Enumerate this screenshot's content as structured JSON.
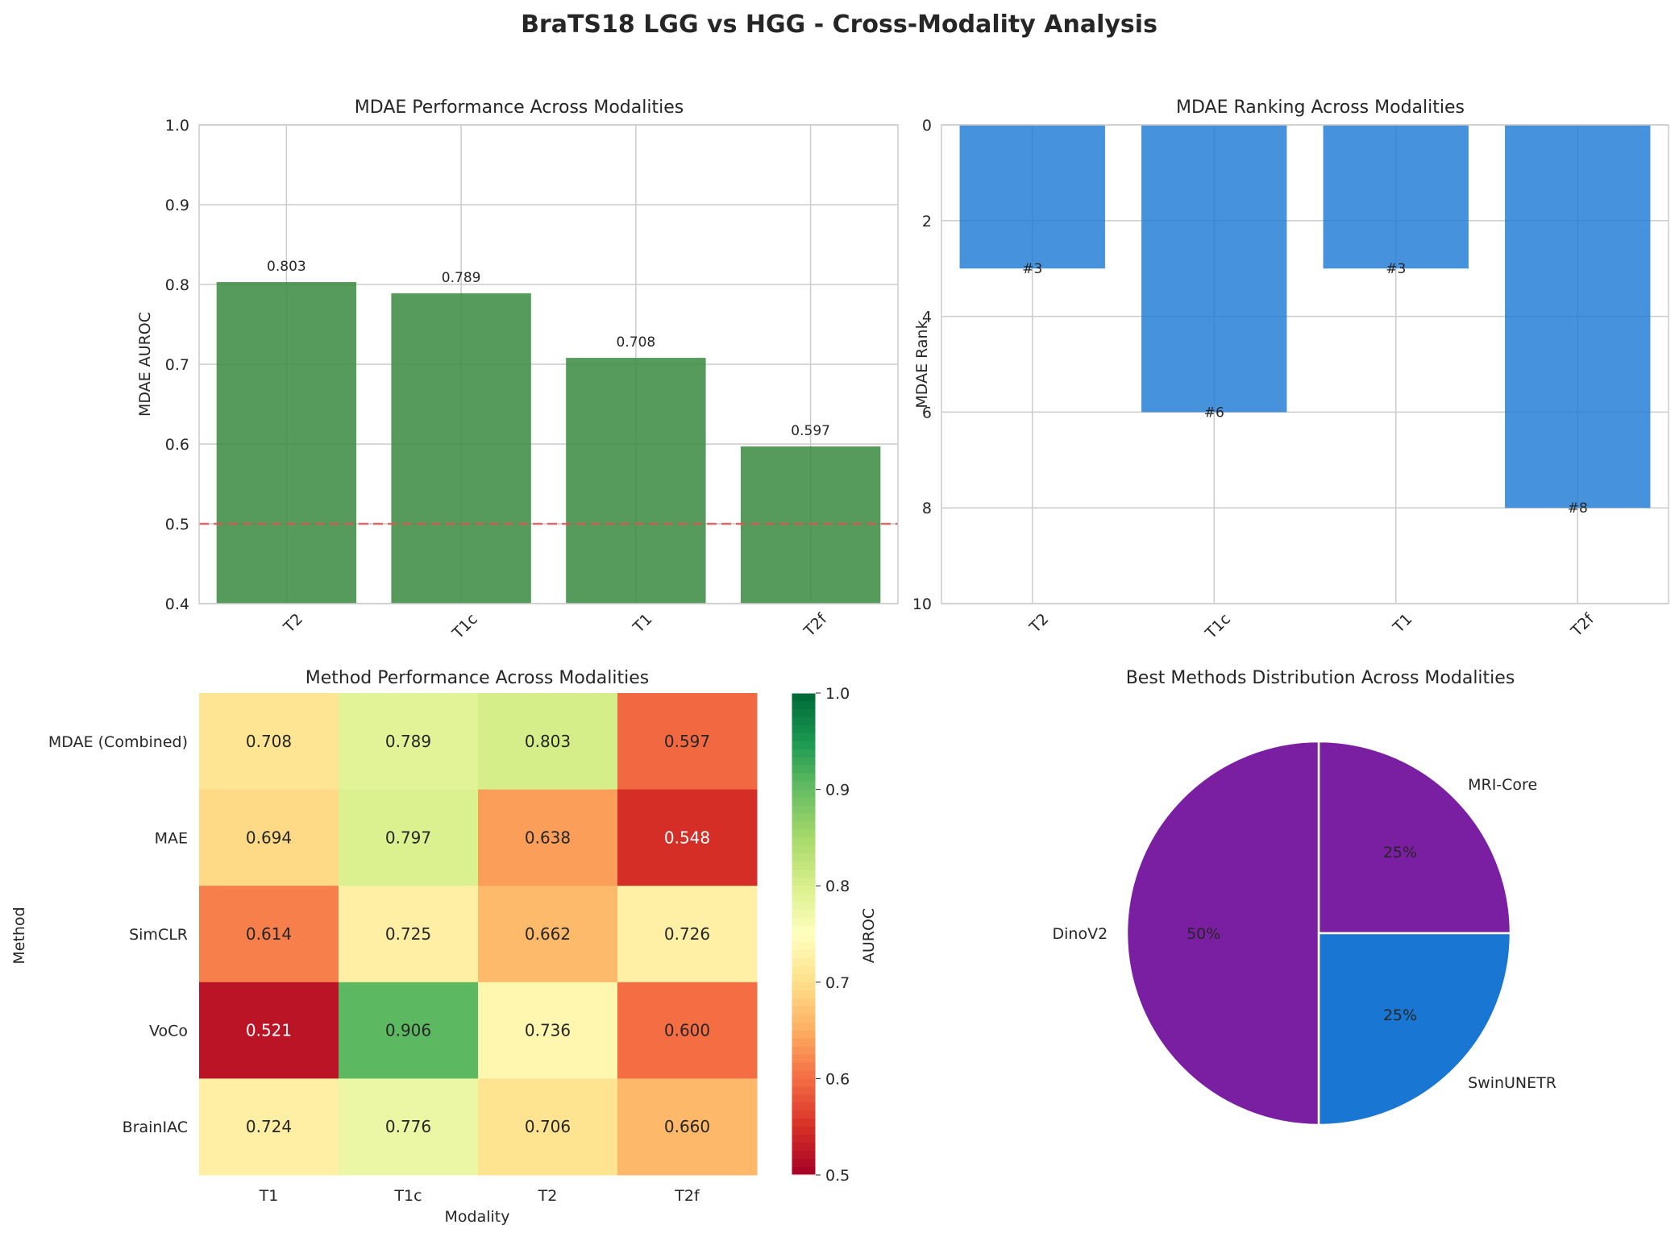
{
  "suptitle": "BraTS18 LGG vs HGG - Cross-Modality Analysis",
  "colors": {
    "bar_green": "#3a8a3f",
    "bar_blue": "#1f7ad6",
    "chance_line": "#e05555",
    "pie_purple": "#7b1fa2",
    "pie_blue": "#1976d2"
  },
  "chart_data": [
    {
      "type": "bar",
      "title": "MDAE Performance Across Modalities",
      "xlabel": "",
      "ylabel": "MDAE AUROC",
      "categories": [
        "T2",
        "T1c",
        "T1",
        "T2f"
      ],
      "values": [
        0.803,
        0.789,
        0.708,
        0.597
      ],
      "data_labels": [
        "0.803",
        "0.789",
        "0.708",
        "0.597"
      ],
      "ylim": [
        0.4,
        1.0
      ],
      "yticks": [
        0.4,
        0.5,
        0.6,
        0.7,
        0.8,
        0.9,
        1.0
      ],
      "ytick_labels": [
        "0.4",
        "0.5",
        "0.6",
        "0.7",
        "0.8",
        "0.9",
        "1.0"
      ],
      "reference_line": 0.5,
      "grid": true
    },
    {
      "type": "bar",
      "title": "MDAE Ranking Across Modalities",
      "xlabel": "",
      "ylabel": "MDAE Rank",
      "categories": [
        "T2",
        "T1c",
        "T1",
        "T2f"
      ],
      "values": [
        3,
        6,
        3,
        8
      ],
      "data_labels": [
        "#3",
        "#6",
        "#3",
        "#8"
      ],
      "ylim": [
        10,
        0
      ],
      "y_inverted": true,
      "yticks": [
        0,
        2,
        4,
        6,
        8,
        10
      ],
      "ytick_labels": [
        "0",
        "2",
        "4",
        "6",
        "8",
        "10"
      ],
      "grid": true
    },
    {
      "type": "heatmap",
      "title": "Method Performance Across Modalities",
      "xlabel": "Modality",
      "ylabel": "Method",
      "columns": [
        "T1",
        "T1c",
        "T2",
        "T2f"
      ],
      "rows": [
        "MDAE (Combined)",
        "MAE",
        "SimCLR",
        "VoCo",
        "BrainIAC"
      ],
      "values": [
        [
          0.708,
          0.789,
          0.803,
          0.597
        ],
        [
          0.694,
          0.797,
          0.638,
          0.548
        ],
        [
          0.614,
          0.725,
          0.662,
          0.726
        ],
        [
          0.521,
          0.906,
          0.736,
          0.6
        ],
        [
          0.724,
          0.776,
          0.706,
          0.66
        ]
      ],
      "value_labels": [
        [
          "0.708",
          "0.789",
          "0.803",
          "0.597"
        ],
        [
          "0.694",
          "0.797",
          "0.638",
          "0.548"
        ],
        [
          "0.614",
          "0.725",
          "0.662",
          "0.726"
        ],
        [
          "0.521",
          "0.906",
          "0.736",
          "0.600"
        ],
        [
          "0.724",
          "0.776",
          "0.706",
          "0.660"
        ]
      ],
      "colormap": "RdYlGn",
      "vmin": 0.5,
      "vmax": 1.0,
      "colorbar_label": "AUROC",
      "colorbar_ticks": [
        "0.5",
        "0.6",
        "0.7",
        "0.8",
        "0.9",
        "1.0"
      ]
    },
    {
      "type": "pie",
      "title": "Best Methods Distribution Across Modalities",
      "labels": [
        "MRI-Core",
        "SwinUNETR",
        "DinoV2"
      ],
      "values": [
        25,
        25,
        50
      ],
      "percent_labels": [
        "25%",
        "25%",
        "50%"
      ],
      "slice_colors": [
        "#7b1fa2",
        "#1976d2",
        "#7b1fa2"
      ]
    }
  ]
}
